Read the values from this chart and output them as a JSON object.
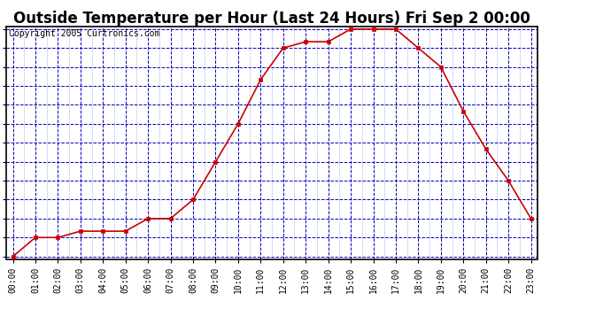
{
  "title": "Outside Temperature per Hour (Last 24 Hours) Fri Sep 2 00:00",
  "copyright": "Copyright 2005 Curtronics.com",
  "hours": [
    "00:00",
    "01:00",
    "02:00",
    "03:00",
    "04:00",
    "05:00",
    "06:00",
    "07:00",
    "08:00",
    "09:00",
    "10:00",
    "11:00",
    "12:00",
    "13:00",
    "14:00",
    "15:00",
    "16:00",
    "17:00",
    "18:00",
    "19:00",
    "20:00",
    "21:00",
    "22:00",
    "23:00"
  ],
  "temps": [
    65.0,
    66.5,
    66.5,
    67.0,
    67.0,
    67.0,
    68.0,
    68.0,
    69.5,
    72.5,
    75.5,
    79.0,
    81.5,
    82.0,
    82.0,
    83.0,
    83.0,
    83.0,
    81.5,
    80.0,
    76.5,
    73.5,
    71.0,
    68.0
  ],
  "ylim": [
    65.0,
    83.0
  ],
  "yticks": [
    65.0,
    66.5,
    68.0,
    69.5,
    71.0,
    72.5,
    74.0,
    75.5,
    77.0,
    78.5,
    80.0,
    81.5,
    83.0
  ],
  "line_color": "#cc0000",
  "marker_color": "#cc0000",
  "bg_color": "#ffffff",
  "plot_bg": "#ffffff",
  "grid_color": "#0000bb",
  "title_fontsize": 12,
  "tick_fontsize": 7,
  "copyright_fontsize": 7,
  "title_bg": "#ffffff"
}
